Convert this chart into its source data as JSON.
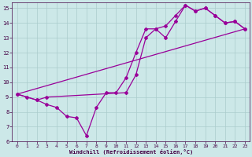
{
  "background_color": "#cce8e8",
  "grid_color": "#aacccc",
  "line_color": "#990099",
  "xlabel": "Windchill (Refroidissement éolien,°C)",
  "xlim": [
    -0.5,
    23.5
  ],
  "ylim": [
    6,
    15.4
  ],
  "yticks": [
    6,
    7,
    8,
    9,
    10,
    11,
    12,
    13,
    14,
    15
  ],
  "xticks": [
    0,
    1,
    2,
    3,
    4,
    5,
    6,
    7,
    8,
    9,
    10,
    11,
    12,
    13,
    14,
    15,
    16,
    17,
    18,
    19,
    20,
    21,
    22,
    23
  ],
  "line1_x": [
    0,
    1,
    2,
    3,
    4,
    5,
    6,
    7,
    8,
    9,
    10,
    11,
    12,
    13,
    14,
    15,
    16,
    17,
    18,
    19,
    20,
    21,
    22,
    23
  ],
  "line1_y": [
    9.2,
    9.0,
    8.8,
    8.5,
    8.3,
    7.7,
    7.6,
    6.4,
    8.3,
    9.3,
    9.3,
    10.3,
    12.0,
    13.6,
    13.6,
    13.0,
    14.1,
    15.2,
    14.8,
    15.0,
    14.5,
    14.0,
    14.1,
    13.6
  ],
  "line2_x": [
    0,
    2,
    3,
    11,
    12,
    13,
    14,
    15,
    16,
    17,
    18,
    19,
    20,
    21,
    22,
    23
  ],
  "line2_y": [
    9.2,
    8.8,
    9.0,
    9.3,
    10.5,
    13.0,
    13.6,
    13.8,
    14.5,
    15.2,
    14.8,
    15.0,
    14.5,
    14.0,
    14.1,
    13.6
  ],
  "line3_x": [
    0,
    23
  ],
  "line3_y": [
    9.2,
    13.6
  ]
}
